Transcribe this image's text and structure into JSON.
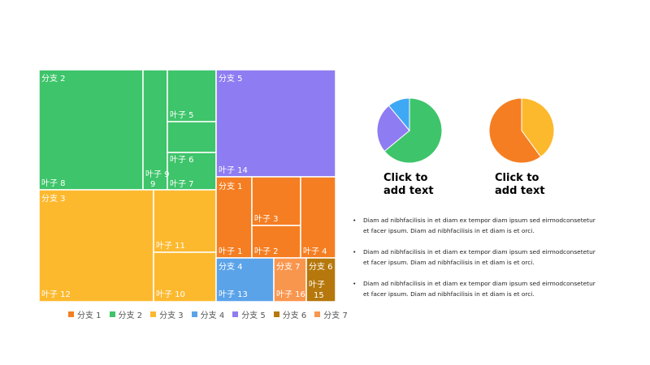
{
  "chart_data": {
    "type": "treemap",
    "branches": [
      {
        "name": "分支 1",
        "color": "#F57E22"
      },
      {
        "name": "分支 2",
        "color": "#3EC46A"
      },
      {
        "name": "分支 3",
        "color": "#FDB92E"
      },
      {
        "name": "分支 4",
        "color": "#5BA3E9"
      },
      {
        "name": "分支 5",
        "color": "#8E7CF2"
      },
      {
        "name": "分支 6",
        "color": "#B6780C"
      },
      {
        "name": "分支 7",
        "color": "#F9964E"
      }
    ],
    "leaves": [
      {
        "name": "分支 2",
        "branch": "分支 2"
      },
      {
        "name": "叶子 8",
        "branch": "分支 2",
        "value": 8
      },
      {
        "name": "叶子 9",
        "branch": "分支 2",
        "value": 9
      },
      {
        "name": "叶子 5",
        "branch": "分支 2",
        "value": 5
      },
      {
        "name": "叶子 6",
        "branch": "分支 2",
        "value": 6
      },
      {
        "name": "叶子 7",
        "branch": "分支 2",
        "value": 7
      },
      {
        "name": "分支 5",
        "branch": "分支 5"
      },
      {
        "name": "叶子 14",
        "branch": "分支 5",
        "value": 14
      },
      {
        "name": "分支 3",
        "branch": "分支 3"
      },
      {
        "name": "叶子 12",
        "branch": "分支 3",
        "value": 12
      },
      {
        "name": "叶子 11",
        "branch": "分支 3",
        "value": 11
      },
      {
        "name": "叶子 10",
        "branch": "分支 3",
        "value": 10
      },
      {
        "name": "分支 1",
        "branch": "分支 1"
      },
      {
        "name": "叶子 1",
        "branch": "分支 1",
        "value": 1
      },
      {
        "name": "叶子 3",
        "branch": "分支 1",
        "value": 3
      },
      {
        "name": "叶子 2",
        "branch": "分支 1",
        "value": 2
      },
      {
        "name": "叶子 4",
        "branch": "分支 1",
        "value": 4
      },
      {
        "name": "分支 4",
        "branch": "分支 4"
      },
      {
        "name": "叶子 13",
        "branch": "分支 4",
        "value": 13
      },
      {
        "name": "分支 7",
        "branch": "分支 7"
      },
      {
        "name": "叶子 16",
        "branch": "分支 7",
        "value": 16
      },
      {
        "name": "分支 6",
        "branch": "分支 6"
      },
      {
        "name": "叶子",
        "branch": "分支 6"
      },
      {
        "name": "15",
        "branch": "分支 6",
        "value": 15
      }
    ],
    "legend": [
      "分支 1",
      "分支 2",
      "分支 3",
      "分支 4",
      "分支 5",
      "分支 6",
      "分支 7"
    ],
    "legend_position": "bottom"
  },
  "pies": [
    {
      "type": "pie",
      "slices": [
        {
          "value": 64,
          "color": "#3EC46A"
        },
        {
          "value": 25,
          "color": "#8E7CF2"
        },
        {
          "value": 11,
          "color": "#3EA8F4"
        }
      ],
      "caption_line1": "Click to",
      "caption_line2": "add text"
    },
    {
      "type": "pie",
      "slices": [
        {
          "value": 40,
          "color": "#FDB92E"
        },
        {
          "value": 60,
          "color": "#F57E22"
        }
      ],
      "caption_line1": "Click to",
      "caption_line2": "add text"
    }
  ],
  "bullets": [
    {
      "marker": "•",
      "text": "Diam ad nibhfacilisis in et diam ex tempor diam ipsum sed eirmodconsetetur et facer ipsum. Diam ad nibhfacilisis in et diam is et orci."
    },
    {
      "marker": "•",
      "text": "Diam ad nibhfacilisis in et diam ex tempor diam ipsum sed eirmodconsetetur et facer ipsum. Diam ad nibhfacilisis in et diam is et orci."
    },
    {
      "marker": "•",
      "text": "Diam ad nibhfacilisis in et diam ex tempor diam ipsum sed eirmodconsetetur et facer ipsum. Diam ad nibhfacilisis in et diam is et orci."
    }
  ]
}
